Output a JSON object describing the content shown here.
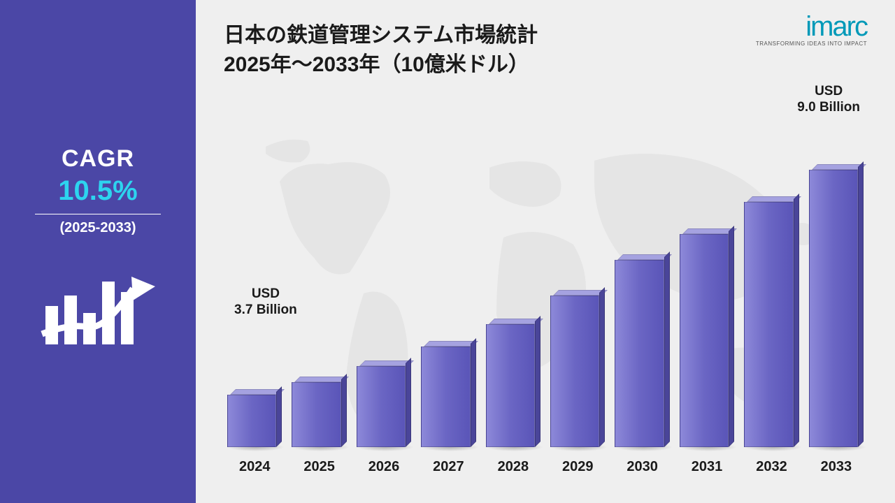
{
  "sidebar": {
    "cagr_label": "CAGR",
    "cagr_value": "10.5%",
    "cagr_value_color": "#2dd4ef",
    "cagr_range": "(2025-2033)",
    "bg_color": "#4b47a6"
  },
  "title": {
    "line1": "日本の鉄道管理システム市場統計",
    "line2": "2025年〜2033年（10億米ドル）"
  },
  "logo": {
    "text": "imarc",
    "tagline": "TRANSFORMING IDEAS INTO IMPACT",
    "color": "#0099b8"
  },
  "chart": {
    "type": "bar",
    "categories": [
      "2024",
      "2025",
      "2026",
      "2027",
      "2028",
      "2029",
      "2030",
      "2031",
      "2032",
      "2033"
    ],
    "values": [
      3.7,
      4.09,
      4.52,
      5.0,
      5.52,
      6.1,
      6.74,
      7.45,
      8.24,
      9.0
    ],
    "heights_pct": [
      18,
      22,
      27,
      33,
      40,
      49,
      60,
      68,
      78,
      88
    ],
    "bar_fill": "#6b66c4",
    "bar_top": "#a5a2e0",
    "bar_side": "#4a4599",
    "start_label_l1": "USD",
    "start_label_l2": "3.7 Billion",
    "end_label_l1": "USD",
    "end_label_l2": "9.0 Billion",
    "background_color": "#efefef",
    "map_color": "#cfcfcf",
    "label_fontsize": 20,
    "title_fontsize": 30
  }
}
